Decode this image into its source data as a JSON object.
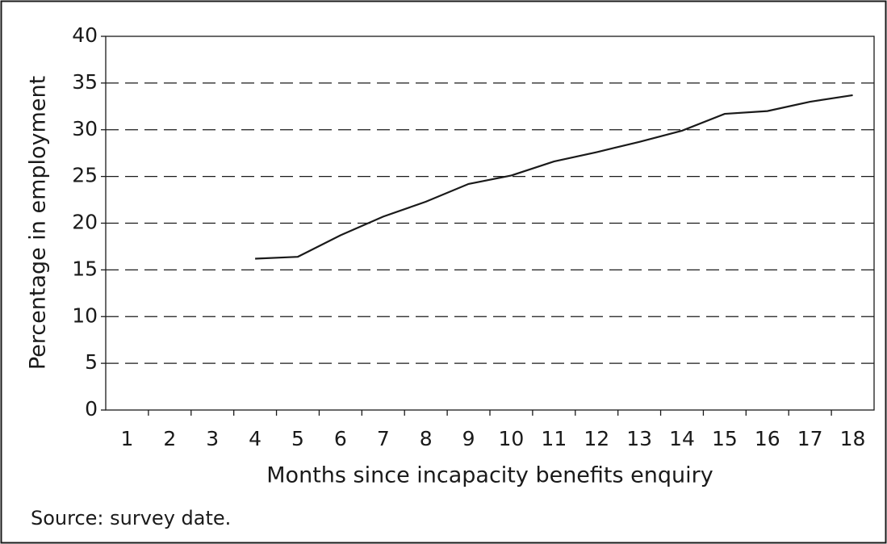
{
  "chart_data": {
    "type": "line",
    "x_label": "Months since incapacity benefits enquiry",
    "y_label": "Percentage in employment",
    "source": "Source: survey date.",
    "categories": [
      "1",
      "2",
      "3",
      "4",
      "5",
      "6",
      "7",
      "8",
      "9",
      "10",
      "11",
      "12",
      "13",
      "14",
      "15",
      "16",
      "17",
      "18"
    ],
    "series": [
      {
        "color": "#1a1a1a",
        "values": [
          null,
          null,
          null,
          16.2,
          16.4,
          18.7,
          20.7,
          22.3,
          24.2,
          25.1,
          26.6,
          27.6,
          28.7,
          29.9,
          31.7,
          32.0,
          33.0,
          33.7
        ]
      }
    ],
    "ylim": [
      0,
      40
    ],
    "yticks": [
      0,
      5,
      10,
      15,
      20,
      25,
      30,
      35,
      40
    ],
    "grid": true
  }
}
